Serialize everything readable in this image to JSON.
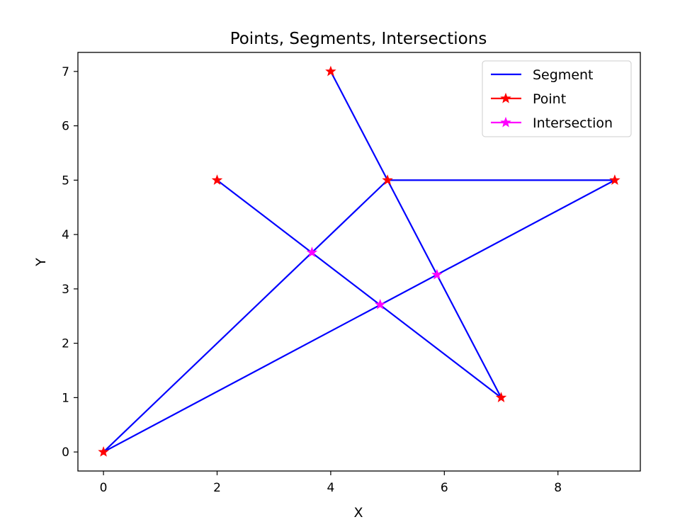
{
  "chart_data": {
    "type": "line",
    "title": "Points, Segments, Intersections",
    "xlabel": "X",
    "ylabel": "Y",
    "xlim": [
      -0.45,
      9.45
    ],
    "ylim": [
      -0.35,
      7.35
    ],
    "xticks": [
      0,
      2,
      4,
      6,
      8
    ],
    "yticks": [
      0,
      1,
      2,
      3,
      4,
      5,
      6,
      7
    ],
    "grid": false,
    "legend_position": "top-right",
    "colors": {
      "segment": "#0000ff",
      "point": "#ff0000",
      "intersection": "#ff00ff"
    },
    "legend": [
      "Segment",
      "Point",
      "Intersection"
    ],
    "segments": [
      {
        "x": [
          0,
          5
        ],
        "y": [
          0,
          5
        ]
      },
      {
        "x": [
          5,
          9
        ],
        "y": [
          5,
          5
        ]
      },
      {
        "x": [
          9,
          0
        ],
        "y": [
          5,
          0
        ]
      },
      {
        "x": [
          2,
          7
        ],
        "y": [
          5,
          1
        ]
      },
      {
        "x": [
          4,
          7
        ],
        "y": [
          7,
          1
        ]
      }
    ],
    "points": [
      {
        "x": 0,
        "y": 0
      },
      {
        "x": 5,
        "y": 5
      },
      {
        "x": 9,
        "y": 5
      },
      {
        "x": 2,
        "y": 5
      },
      {
        "x": 7,
        "y": 1
      },
      {
        "x": 4,
        "y": 7
      }
    ],
    "intersections": [
      {
        "x": 3.67,
        "y": 3.67
      },
      {
        "x": 4.87,
        "y": 2.71
      },
      {
        "x": 5.87,
        "y": 3.26
      }
    ]
  }
}
